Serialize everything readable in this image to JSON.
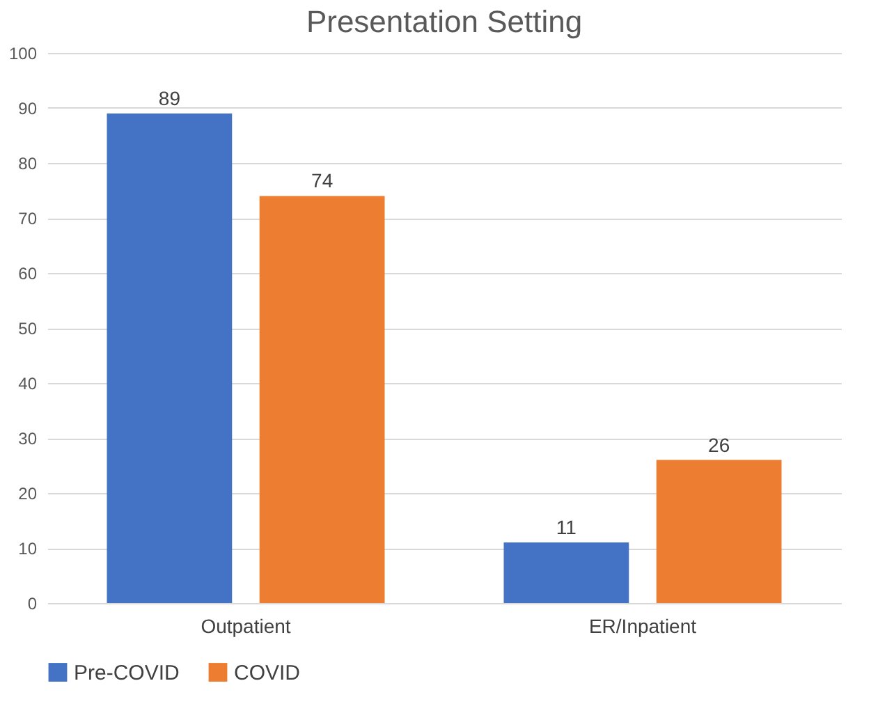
{
  "chart_data": {
    "type": "bar",
    "title": "Presentation Setting",
    "categories": [
      "Outpatient",
      "ER/Inpatient"
    ],
    "series": [
      {
        "name": "Pre-COVID",
        "color": "#4472c4",
        "values": [
          89,
          11
        ]
      },
      {
        "name": "COVID",
        "color": "#ed7d31",
        "values": [
          74,
          26
        ]
      }
    ],
    "ylim": [
      0,
      100
    ],
    "yticks": [
      0,
      10,
      20,
      30,
      40,
      50,
      60,
      70,
      80,
      90,
      100
    ],
    "grid": "y",
    "legend": "bottom",
    "data_labels": true
  }
}
